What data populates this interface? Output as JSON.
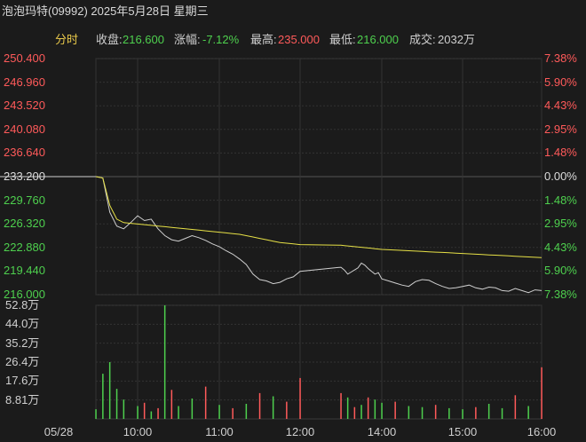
{
  "header": {
    "title": "泡泡玛特(09992) 2025年5月28日 星期三"
  },
  "stats": {
    "mode": "分时",
    "close_label": "收盘:",
    "close_value": "216.600",
    "change_label": "涨幅:",
    "change_value": "-7.12%",
    "high_label": "最高:",
    "high_value": "235.000",
    "low_label": "最低:",
    "low_value": "216.000",
    "volume_label": "成交:",
    "volume_value": "2032万"
  },
  "colors": {
    "up": "#ff5a5a",
    "down": "#4ed04e",
    "neutral": "#dcdcdc",
    "mode": "#e8c84a",
    "price_line": "#cfcfcf",
    "avg_line": "#e6e046",
    "grid": "#3a3a3a"
  },
  "chart_data": {
    "type": "line",
    "ylim": [
      216.0,
      250.4
    ],
    "y_ticks": [
      "250.400",
      "246.960",
      "243.520",
      "240.080",
      "236.640",
      "233.200",
      "229.760",
      "226.320",
      "222.880",
      "219.440",
      "216.000"
    ],
    "pct_ticks": [
      "7.38%",
      "5.90%",
      "4.43%",
      "2.95%",
      "1.48%",
      "0.00%",
      "1.48%",
      "2.95%",
      "4.43%",
      "5.90%",
      "7.38%"
    ],
    "tick_colors": [
      "up",
      "up",
      "up",
      "up",
      "up",
      "neutral",
      "down",
      "down",
      "down",
      "down",
      "down"
    ],
    "x_ticks": [
      "05/28",
      "10:00",
      "11:00",
      "12:00",
      "14:00",
      "15:00",
      "16:00"
    ],
    "volume_ticks": [
      "52.8万",
      "44.0万",
      "35.2万",
      "26.4万",
      "17.6万",
      "8.81万"
    ],
    "volume_ylim": [
      0,
      52.8
    ],
    "x": [
      "09:30",
      "09:35",
      "09:40",
      "09:45",
      "09:50",
      "09:55",
      "10:00",
      "10:05",
      "10:10",
      "10:15",
      "10:20",
      "10:25",
      "10:30",
      "10:35",
      "10:40",
      "10:45",
      "10:50",
      "10:55",
      "11:00",
      "11:05",
      "11:10",
      "11:15",
      "11:20",
      "11:25",
      "11:30",
      "11:35",
      "11:40",
      "11:45",
      "11:50",
      "11:55",
      "12:00",
      "13:00",
      "13:05",
      "13:10",
      "13:15",
      "13:20",
      "13:25",
      "13:30",
      "13:35",
      "13:40",
      "13:45",
      "13:50",
      "13:55",
      "14:00",
      "14:05",
      "14:10",
      "14:15",
      "14:20",
      "14:25",
      "14:30",
      "14:35",
      "14:40",
      "14:45",
      "14:50",
      "14:55",
      "15:00",
      "15:05",
      "15:10",
      "15:15",
      "15:20",
      "15:25",
      "15:30",
      "15:35",
      "15:40",
      "15:45",
      "15:50",
      "15:55",
      "16:00"
    ],
    "series": [
      {
        "values": [
          233.2,
          233.0,
          228.0,
          226.0,
          225.6,
          226.5,
          227.5,
          226.8,
          227.0,
          225.6,
          224.6,
          224.0,
          223.8,
          224.2,
          224.6,
          224.3,
          223.9,
          223.4,
          223.0,
          222.4,
          221.9,
          221.2,
          220.4,
          219.0,
          218.2,
          218.0,
          217.6,
          217.8,
          218.3,
          218.6,
          219.4,
          220.0,
          219.6,
          219.0,
          219.3,
          219.6,
          219.9,
          220.6,
          220.3,
          219.8,
          219.4,
          219.0,
          219.2,
          218.3,
          218.0,
          217.7,
          217.4,
          217.2,
          217.9,
          218.2,
          218.1,
          217.6,
          217.2,
          216.9,
          217.0,
          217.2,
          217.4,
          217.0,
          216.8,
          217.1,
          217.0,
          216.6,
          216.5,
          216.9,
          216.6,
          216.3,
          216.7,
          216.6
        ]
      },
      {
        "values": [
          233.2,
          233.0,
          229.0,
          227.0,
          226.5,
          226.4,
          226.3,
          226.2,
          226.1,
          226.0,
          225.9,
          225.8,
          225.7,
          225.6,
          225.5,
          225.4,
          225.3,
          225.2,
          225.1,
          225.0,
          224.9,
          224.8,
          224.6,
          224.4,
          224.2,
          224.0,
          223.8,
          223.6,
          223.5,
          223.4,
          223.3,
          223.2,
          223.15,
          223.1,
          223.05,
          223.0,
          222.95,
          222.9,
          222.85,
          222.8,
          222.75,
          222.7,
          222.65,
          222.6,
          222.55,
          222.5,
          222.45,
          222.4,
          222.35,
          222.3,
          222.25,
          222.2,
          222.15,
          222.1,
          222.05,
          222.0,
          221.95,
          221.9,
          221.85,
          221.8,
          221.75,
          221.7,
          221.65,
          221.6,
          221.55,
          221.5,
          221.45,
          221.4
        ]
      }
    ],
    "volume": [
      {
        "time": "09:30",
        "value": 4.5,
        "dir": "down"
      },
      {
        "time": "09:35",
        "value": 21.0,
        "dir": "down"
      },
      {
        "time": "09:40",
        "value": 26.4,
        "dir": "down"
      },
      {
        "time": "09:45",
        "value": 14.0,
        "dir": "down"
      },
      {
        "time": "09:50",
        "value": 9.0,
        "dir": "down"
      },
      {
        "time": "10:00",
        "value": 6.0,
        "dir": "down"
      },
      {
        "time": "10:05",
        "value": 7.5,
        "dir": "up"
      },
      {
        "time": "10:10",
        "value": 3.5,
        "dir": "down"
      },
      {
        "time": "10:15",
        "value": 5.0,
        "dir": "up"
      },
      {
        "time": "10:20",
        "value": 52.8,
        "dir": "down"
      },
      {
        "time": "10:25",
        "value": 13.5,
        "dir": "up"
      },
      {
        "time": "10:30",
        "value": 6.0,
        "dir": "down"
      },
      {
        "time": "10:40",
        "value": 9.5,
        "dir": "down"
      },
      {
        "time": "10:50",
        "value": 15.0,
        "dir": "up"
      },
      {
        "time": "11:00",
        "value": 6.5,
        "dir": "down"
      },
      {
        "time": "11:10",
        "value": 5.0,
        "dir": "up"
      },
      {
        "time": "11:20",
        "value": 7.0,
        "dir": "down"
      },
      {
        "time": "11:30",
        "value": 12.0,
        "dir": "up"
      },
      {
        "time": "11:40",
        "value": 10.5,
        "dir": "down"
      },
      {
        "time": "11:50",
        "value": 8.0,
        "dir": "up"
      },
      {
        "time": "12:00",
        "value": 19.0,
        "dir": "up"
      },
      {
        "time": "13:00",
        "value": 12.0,
        "dir": "up"
      },
      {
        "time": "13:10",
        "value": 10.0,
        "dir": "down"
      },
      {
        "time": "13:20",
        "value": 5.5,
        "dir": "up"
      },
      {
        "time": "13:30",
        "value": 6.5,
        "dir": "down"
      },
      {
        "time": "13:40",
        "value": 10.0,
        "dir": "up"
      },
      {
        "time": "13:50",
        "value": 9.0,
        "dir": "down"
      },
      {
        "time": "14:00",
        "value": 7.5,
        "dir": "down"
      },
      {
        "time": "14:10",
        "value": 8.0,
        "dir": "up"
      },
      {
        "time": "14:20",
        "value": 6.0,
        "dir": "down"
      },
      {
        "time": "14:30",
        "value": 5.5,
        "dir": "down"
      },
      {
        "time": "14:40",
        "value": 6.5,
        "dir": "up"
      },
      {
        "time": "14:50",
        "value": 5.0,
        "dir": "down"
      },
      {
        "time": "15:00",
        "value": 4.5,
        "dir": "down"
      },
      {
        "time": "15:10",
        "value": 5.5,
        "dir": "up"
      },
      {
        "time": "15:20",
        "value": 7.0,
        "dir": "down"
      },
      {
        "time": "15:30",
        "value": 5.0,
        "dir": "down"
      },
      {
        "time": "15:40",
        "value": 11.0,
        "dir": "up"
      },
      {
        "time": "15:50",
        "value": 6.0,
        "dir": "down"
      },
      {
        "time": "16:00",
        "value": 24.0,
        "dir": "up"
      }
    ]
  }
}
